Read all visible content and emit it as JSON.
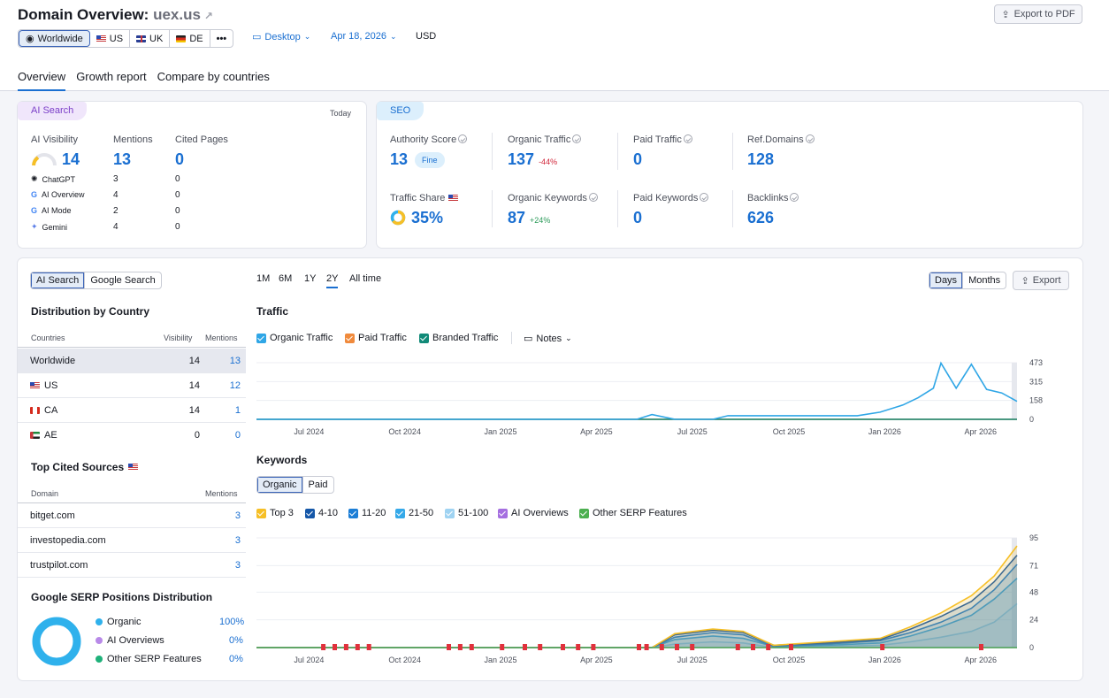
{
  "header": {
    "title_prefix": "Domain Overview:",
    "domain": "uex.us",
    "export_pdf": "Export to PDF",
    "databases": [
      {
        "label": "Worldwide"
      },
      {
        "label": "US"
      },
      {
        "label": "UK"
      },
      {
        "label": "DE"
      },
      {
        "label": "•••"
      }
    ],
    "device": "Desktop",
    "date": "Apr 18, 2026",
    "currency": "USD",
    "tabs": [
      "Overview",
      "Growth report",
      "Compare by countries"
    ]
  },
  "ai_search": {
    "pill": "AI Search",
    "today": "Today",
    "headers": [
      "AI Visibility",
      "Mentions",
      "Cited Pages"
    ],
    "visibility": "14",
    "mentions": "13",
    "cited_pages": "0",
    "rows": [
      {
        "name": "ChatGPT",
        "mentions": "3",
        "cited": "0"
      },
      {
        "name": "AI Overview",
        "mentions": "4",
        "cited": "0"
      },
      {
        "name": "AI Mode",
        "mentions": "2",
        "cited": "0"
      },
      {
        "name": "Gemini",
        "mentions": "4",
        "cited": "0"
      }
    ]
  },
  "seo": {
    "pill": "SEO",
    "metrics": [
      {
        "label": "Authority Score",
        "value": "13",
        "badge": "Fine"
      },
      {
        "label": "Organic Traffic",
        "value": "137",
        "delta": "-44%"
      },
      {
        "label": "Paid Traffic",
        "value": "0"
      },
      {
        "label": "Ref.Domains",
        "value": "128"
      },
      {
        "label": "Traffic Share",
        "value": "35%"
      },
      {
        "label": "Organic Keywords",
        "value": "87",
        "delta": "+24%"
      },
      {
        "label": "Paid Keywords",
        "value": "0"
      },
      {
        "label": "Backlinks",
        "value": "626"
      }
    ]
  },
  "left": {
    "toggle": [
      "AI Search",
      "Google Search"
    ],
    "dist_title": "Distribution by Country",
    "dist_headers": [
      "Countries",
      "Visibility",
      "Mentions"
    ],
    "countries": [
      {
        "name": "Worldwide",
        "visibility": "14",
        "mentions": "13"
      },
      {
        "name": "US",
        "visibility": "14",
        "mentions": "12"
      },
      {
        "name": "CA",
        "visibility": "14",
        "mentions": "1"
      },
      {
        "name": "AE",
        "visibility": "0",
        "mentions": "0"
      }
    ],
    "cited_title": "Top Cited Sources",
    "cited_headers": [
      "Domain",
      "Mentions"
    ],
    "cited": [
      {
        "domain": "bitget.com",
        "mentions": "3"
      },
      {
        "domain": "investopedia.com",
        "mentions": "3"
      },
      {
        "domain": "trustpilot.com",
        "mentions": "3"
      }
    ],
    "serp_title": "Google SERP Positions Distribution",
    "serp": [
      {
        "label": "Organic",
        "value": "100%",
        "color": "#2fb1ec"
      },
      {
        "label": "AI Overviews",
        "value": "0%",
        "color": "#b889e8"
      },
      {
        "label": "Other SERP Features",
        "value": "0%",
        "color": "#1fb17a"
      }
    ]
  },
  "charts": {
    "periods": [
      "1M",
      "6M",
      "1Y",
      "2Y",
      "All time"
    ],
    "granularity": [
      "Days",
      "Months"
    ],
    "export": "Export",
    "traffic_title": "Traffic",
    "traffic_legend": [
      {
        "label": "Organic Traffic",
        "color": "#2fa6e6"
      },
      {
        "label": "Paid Traffic",
        "color": "#f08a3c"
      },
      {
        "label": "Branded Traffic",
        "color": "#118a78"
      }
    ],
    "notes": "Notes",
    "keywords_title": "Keywords",
    "kw_toggle": [
      "Organic",
      "Paid"
    ],
    "kw_legend": [
      {
        "label": "Top 3",
        "color": "#f6bf26"
      },
      {
        "label": "4-10",
        "color": "#1557a8"
      },
      {
        "label": "11-20",
        "color": "#1c7ed6"
      },
      {
        "label": "21-50",
        "color": "#35a9e9"
      },
      {
        "label": "51-100",
        "color": "#9fd3f2"
      },
      {
        "label": "AI Overviews",
        "color": "#a56fe0"
      },
      {
        "label": "Other SERP Features",
        "color": "#4caf50"
      }
    ]
  },
  "chart_data": [
    {
      "type": "line",
      "title": "Traffic",
      "x_ticks": [
        "Jul 2024",
        "Oct 2024",
        "Jan 2025",
        "Apr 2025",
        "Jul 2025",
        "Oct 2025",
        "Jan 2026",
        "Apr 2026"
      ],
      "y_ticks": [
        0,
        158,
        315,
        473
      ],
      "ylim": [
        0,
        473
      ],
      "series": [
        {
          "name": "Organic Traffic",
          "x": [
            0,
            0.5,
            0.52,
            0.55,
            0.6,
            0.62,
            0.7,
            0.79,
            0.82,
            0.85,
            0.87,
            0.89,
            0.9,
            0.92,
            0.94,
            0.96,
            0.98,
            1.0
          ],
          "values": [
            0,
            0,
            40,
            0,
            0,
            30,
            30,
            30,
            60,
            120,
            180,
            260,
            470,
            260,
            460,
            250,
            220,
            150
          ]
        },
        {
          "name": "Paid Traffic",
          "x": [
            0,
            1
          ],
          "values": [
            0,
            0
          ]
        },
        {
          "name": "Branded Traffic",
          "x": [
            0,
            1
          ],
          "values": [
            0,
            0
          ]
        }
      ]
    },
    {
      "type": "area",
      "title": "Keywords",
      "x_ticks": [
        "Jul 2024",
        "Oct 2024",
        "Jan 2025",
        "Apr 2025",
        "Jul 2025",
        "Oct 2025",
        "Jan 2026",
        "Apr 2026"
      ],
      "y_ticks": [
        0,
        24,
        48,
        71,
        95
      ],
      "ylim": [
        0,
        95
      ],
      "series": [
        {
          "name": "Top 3",
          "x": [
            0,
            0.52,
            0.55,
            0.6,
            0.64,
            0.68,
            0.75,
            0.82,
            0.86,
            0.9,
            0.94,
            0.97,
            1.0
          ],
          "values": [
            0,
            0,
            12,
            16,
            14,
            2,
            5,
            8,
            18,
            30,
            45,
            62,
            88
          ]
        },
        {
          "name": "4-10",
          "x": [
            0,
            0.52,
            0.55,
            0.6,
            0.64,
            0.68,
            0.75,
            0.82,
            0.86,
            0.9,
            0.94,
            0.97,
            1.0
          ],
          "values": [
            0,
            0,
            11,
            15,
            13,
            2,
            4,
            7,
            16,
            27,
            40,
            57,
            80
          ]
        },
        {
          "name": "11-20",
          "x": [
            0,
            0.52,
            0.55,
            0.6,
            0.64,
            0.68,
            0.75,
            0.82,
            0.86,
            0.9,
            0.94,
            0.97,
            1.0
          ],
          "values": [
            0,
            0,
            9,
            13,
            11,
            1,
            3,
            6,
            13,
            22,
            34,
            50,
            72
          ]
        },
        {
          "name": "21-50",
          "x": [
            0,
            0.52,
            0.55,
            0.6,
            0.64,
            0.68,
            0.75,
            0.82,
            0.86,
            0.9,
            0.94,
            0.97,
            1.0
          ],
          "values": [
            0,
            0,
            7,
            10,
            8,
            1,
            2,
            4,
            10,
            18,
            28,
            42,
            60
          ]
        },
        {
          "name": "51-100",
          "x": [
            0,
            0.52,
            0.55,
            0.6,
            0.64,
            0.68,
            0.75,
            0.82,
            0.86,
            0.9,
            0.94,
            0.97,
            1.0
          ],
          "values": [
            0,
            0,
            3,
            5,
            4,
            0,
            1,
            2,
            5,
            9,
            14,
            22,
            38
          ]
        },
        {
          "name": "AI Overviews",
          "x": [
            0,
            1
          ],
          "values": [
            0,
            0
          ]
        },
        {
          "name": "Other SERP Features",
          "x": [
            0,
            1
          ],
          "values": [
            0,
            0
          ]
        }
      ]
    }
  ]
}
